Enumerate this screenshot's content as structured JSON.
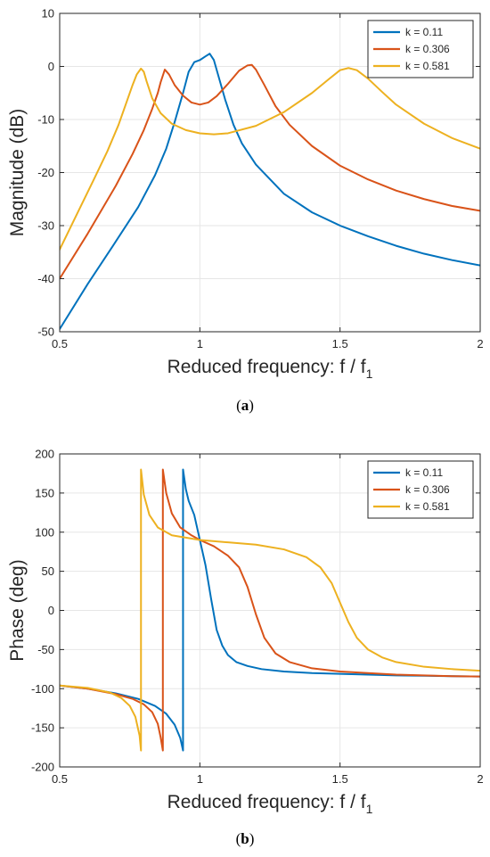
{
  "colors": {
    "series1": "#0072BD",
    "series2": "#D95319",
    "series3": "#EDB120"
  },
  "chart_data": [
    {
      "type": "line",
      "caption_letter": "a",
      "xlabel_main": "Reduced frequency: f / f",
      "xlabel_sub": "1",
      "ylabel": "Magnitude (dB)",
      "xlim": [
        0.5,
        2
      ],
      "ylim": [
        -50,
        10
      ],
      "xticks": [
        0.5,
        1,
        1.5,
        2
      ],
      "xtick_labels": [
        "0.5",
        "1",
        "1.5",
        "2"
      ],
      "yticks": [
        -50,
        -40,
        -30,
        -20,
        -10,
        0,
        10
      ],
      "ytick_labels": [
        "-50",
        "-40",
        "-30",
        "-20",
        "-10",
        "0",
        "10"
      ],
      "grid": true,
      "legend": "top-right",
      "series": [
        {
          "name": "k = 0.11",
          "color": "#0072BD",
          "x": [
            0.5,
            0.6,
            0.7,
            0.78,
            0.84,
            0.88,
            0.91,
            0.94,
            0.96,
            0.98,
            1.0,
            1.02,
            1.035,
            1.05,
            1.07,
            1.09,
            1.12,
            1.15,
            1.2,
            1.3,
            1.4,
            1.5,
            1.6,
            1.7,
            1.8,
            1.9,
            2.0
          ],
          "y": [
            -49.5,
            -41,
            -33,
            -26.5,
            -20.5,
            -15.5,
            -10.5,
            -5,
            -1,
            0.8,
            1.2,
            1.9,
            2.4,
            1.2,
            -2.5,
            -6.2,
            -11,
            -14.5,
            -18.5,
            -24,
            -27.5,
            -30,
            -32,
            -33.8,
            -35.3,
            -36.5,
            -37.5
          ]
        },
        {
          "name": "k = 0.306",
          "color": "#D95319",
          "x": [
            0.5,
            0.6,
            0.7,
            0.76,
            0.8,
            0.83,
            0.85,
            0.86,
            0.875,
            0.89,
            0.91,
            0.94,
            0.97,
            1.0,
            1.03,
            1.06,
            1.1,
            1.14,
            1.17,
            1.185,
            1.2,
            1.23,
            1.27,
            1.32,
            1.4,
            1.5,
            1.6,
            1.7,
            1.8,
            1.9,
            2.0
          ],
          "y": [
            -40,
            -31.5,
            -22.5,
            -16.5,
            -12,
            -8,
            -5,
            -3,
            -0.6,
            -1.5,
            -3.5,
            -5.5,
            -6.8,
            -7.2,
            -6.8,
            -5.6,
            -3.3,
            -0.8,
            0.2,
            0.3,
            -0.6,
            -3.5,
            -7.5,
            -11,
            -15,
            -18.7,
            -21.3,
            -23.4,
            -25,
            -26.3,
            -27.2
          ]
        },
        {
          "name": "k = 0.581",
          "color": "#EDB120",
          "x": [
            0.5,
            0.56,
            0.62,
            0.67,
            0.71,
            0.74,
            0.76,
            0.775,
            0.79,
            0.8,
            0.81,
            0.83,
            0.86,
            0.9,
            0.95,
            1.0,
            1.05,
            1.1,
            1.2,
            1.3,
            1.4,
            1.46,
            1.5,
            1.53,
            1.56,
            1.6,
            1.65,
            1.7,
            1.8,
            1.9,
            2.0
          ],
          "y": [
            -34.5,
            -28,
            -21.5,
            -16,
            -11,
            -6.5,
            -3.5,
            -1.5,
            -0.4,
            -1,
            -2.8,
            -6,
            -8.8,
            -10.8,
            -12,
            -12.6,
            -12.8,
            -12.6,
            -11.2,
            -8.6,
            -5,
            -2.4,
            -0.7,
            -0.3,
            -0.7,
            -2.3,
            -4.8,
            -7.2,
            -10.8,
            -13.5,
            -15.5
          ]
        }
      ]
    },
    {
      "type": "line",
      "caption_letter": "b",
      "xlabel_main": "Reduced frequency: f / f",
      "xlabel_sub": "1",
      "ylabel": "Phase (deg)",
      "xlim": [
        0.5,
        2
      ],
      "ylim": [
        -200,
        200
      ],
      "xticks": [
        0.5,
        1,
        1.5,
        2
      ],
      "xtick_labels": [
        "0.5",
        "1",
        "1.5",
        "2"
      ],
      "yticks": [
        -200,
        -150,
        -100,
        -50,
        0,
        50,
        100,
        150,
        200
      ],
      "ytick_labels": [
        "-200",
        "-150",
        "-100",
        "-50",
        "0",
        "50",
        "100",
        "150",
        "200"
      ],
      "grid": true,
      "legend": "top-right",
      "series": [
        {
          "name": "k = 0.11",
          "color": "#0072BD",
          "x": [
            0.5,
            0.6,
            0.7,
            0.78,
            0.84,
            0.88,
            0.91,
            0.93,
            0.94,
            0.94,
            0.95,
            0.96,
            0.98,
            1.0,
            1.02,
            1.04,
            1.06,
            1.08,
            1.1,
            1.13,
            1.17,
            1.22,
            1.3,
            1.4,
            1.5,
            1.6,
            1.7,
            1.8,
            1.9,
            2.0
          ],
          "y": [
            -96,
            -100,
            -106,
            -113,
            -122,
            -132,
            -146,
            -163,
            -179,
            180,
            155,
            140,
            122,
            90,
            58,
            15,
            -25,
            -45,
            -57,
            -66,
            -71,
            -75,
            -78,
            -80,
            -81,
            -82,
            -83,
            -83.5,
            -84,
            -84.5
          ]
        },
        {
          "name": "k = 0.306",
          "color": "#D95319",
          "x": [
            0.5,
            0.6,
            0.7,
            0.76,
            0.8,
            0.83,
            0.85,
            0.86,
            0.868,
            0.868,
            0.88,
            0.9,
            0.93,
            0.97,
            1.0,
            1.05,
            1.1,
            1.14,
            1.17,
            1.2,
            1.23,
            1.27,
            1.32,
            1.4,
            1.5,
            1.6,
            1.7,
            1.8,
            1.9,
            2.0
          ],
          "y": [
            -96,
            -100,
            -107,
            -113,
            -120,
            -130,
            -145,
            -162,
            -179,
            180,
            150,
            124,
            106,
            96,
            90,
            82,
            70,
            55,
            30,
            -5,
            -35,
            -55,
            -66,
            -74,
            -78,
            -80,
            -82,
            -83,
            -84,
            -84.5
          ]
        },
        {
          "name": "k = 0.581",
          "color": "#EDB120",
          "x": [
            0.5,
            0.6,
            0.68,
            0.72,
            0.75,
            0.77,
            0.785,
            0.79,
            0.79,
            0.8,
            0.82,
            0.85,
            0.9,
            1.0,
            1.1,
            1.2,
            1.3,
            1.38,
            1.43,
            1.47,
            1.5,
            1.53,
            1.56,
            1.6,
            1.65,
            1.7,
            1.8,
            1.9,
            2.0
          ],
          "y": [
            -96,
            -99,
            -105,
            -112,
            -122,
            -136,
            -160,
            -179,
            180,
            148,
            122,
            106,
            96,
            90,
            87,
            84,
            78,
            68,
            55,
            35,
            10,
            -15,
            -35,
            -50,
            -60,
            -66,
            -72,
            -75,
            -77
          ]
        }
      ]
    }
  ]
}
